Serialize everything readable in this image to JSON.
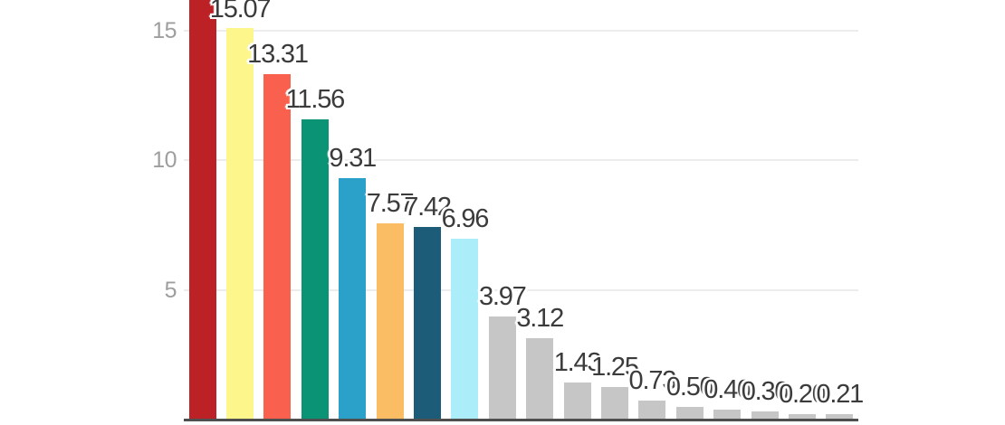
{
  "chart_data": {
    "type": "bar",
    "title": "",
    "orientation": "vertical-columns",
    "legend": "none",
    "background_color": "#ffffff",
    "annotation_style": {
      "description": "value label above each bar with white halo; adjacent labels overlap",
      "color": "#3b3b3b"
    },
    "y_axis": {
      "ticks": [
        5,
        10,
        15
      ],
      "tick_labels": [
        "5",
        "10",
        "15"
      ],
      "tick_label_color": "#9e9e9e",
      "gridline_color": "#ececec",
      "baseline_color": "#4f4f4f",
      "visible_range": [
        0,
        16.2
      ],
      "grid": true
    },
    "x_axis": {
      "category_labels_visible": false
    },
    "crop_note": "top of chart clipped: first bar and its value label extend past image top",
    "bars": [
      {
        "value": null,
        "label": "",
        "color": "#bb2125",
        "clipped_at_top": true
      },
      {
        "value": 15.07,
        "label": "15.07",
        "color": "#fdf68b"
      },
      {
        "value": 13.31,
        "label": "13.31",
        "color": "#f9614e"
      },
      {
        "value": 11.56,
        "label": "11.56",
        "color": "#0b9375"
      },
      {
        "value": 9.31,
        "label": "9.31",
        "color": "#2ba1c9"
      },
      {
        "value": 7.57,
        "label": "7.57",
        "color": "#fabd63"
      },
      {
        "value": 7.42,
        "label": "7.42",
        "color": "#1c5c78"
      },
      {
        "value": 6.96,
        "label": "6.96",
        "color": "#abeefa"
      },
      {
        "value": 3.97,
        "label": "3.97",
        "color": "#c6c6c6"
      },
      {
        "value": 3.12,
        "label": "3.12",
        "color": "#c6c6c6"
      },
      {
        "value": 1.43,
        "label": "1.43",
        "color": "#c6c6c6"
      },
      {
        "value": 1.25,
        "label": "1.25",
        "color": "#c6c6c6"
      },
      {
        "value": 0.73,
        "label": "0.73",
        "color": "#c6c6c6"
      },
      {
        "value": 0.5,
        "label": "0.50",
        "color": "#c6c6c6"
      },
      {
        "value": 0.4,
        "label": "0.40",
        "color": "#c6c6c6"
      },
      {
        "value": 0.3,
        "label": "0.30",
        "color": "#c6c6c6"
      },
      {
        "value": 0.2,
        "label": "0.20",
        "color": "#c6c6c6"
      },
      {
        "value": 0.21,
        "label": "0.21",
        "color": "#c6c6c6"
      }
    ]
  }
}
